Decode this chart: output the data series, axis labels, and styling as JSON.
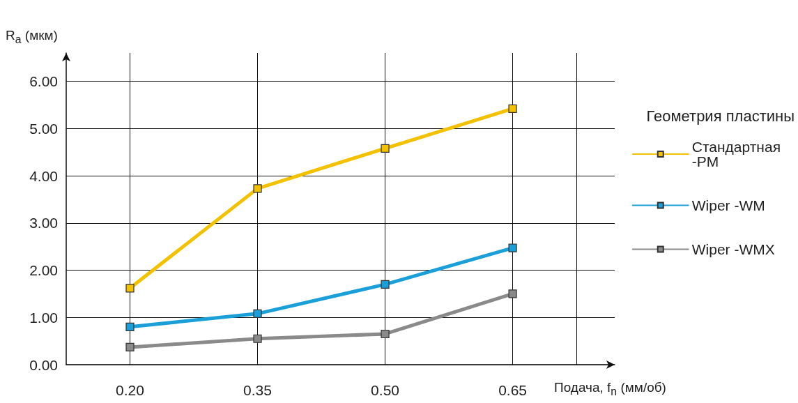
{
  "chart_data": {
    "type": "line",
    "xlabel": "Подача, f$_{n}$ (мм/об)",
    "ylabel": "R$_{a}$ (мкм)",
    "legend_title": "Геометрия пластины",
    "x": [
      0.2,
      0.35,
      0.5,
      0.65
    ],
    "series": [
      {
        "name": "Стандартная -PM",
        "color": "#f2c200",
        "values": [
          1.62,
          3.73,
          4.58,
          5.42
        ]
      },
      {
        "name": "Wiper -WM",
        "color": "#1a9fd9",
        "values": [
          0.8,
          1.08,
          1.7,
          2.47
        ]
      },
      {
        "name": "Wiper -WMX",
        "color": "#8a8a8a",
        "values": [
          0.37,
          0.55,
          0.65,
          1.5
        ]
      }
    ],
    "xlim": [
      0.125,
      0.77
    ],
    "xticks": [
      {
        "value": 0.2,
        "label": "0.20"
      },
      {
        "value": 0.35,
        "label": "0.35"
      },
      {
        "value": 0.5,
        "label": "0.50"
      },
      {
        "value": 0.65,
        "label": "0.65"
      },
      {
        "value": 0.725,
        "label": null
      }
    ],
    "ylim": [
      0,
      6.6
    ],
    "yticks": [
      {
        "value": 0,
        "label": "0.00"
      },
      {
        "value": 1,
        "label": "1.00"
      },
      {
        "value": 2,
        "label": "2.00"
      },
      {
        "value": 3,
        "label": "3.00"
      },
      {
        "value": 4,
        "label": "4.00"
      },
      {
        "value": 5,
        "label": "5.00"
      },
      {
        "value": 6,
        "label": "6.00"
      }
    ],
    "grid": true,
    "legend": "right",
    "marker": "square",
    "line_style": "solid"
  }
}
